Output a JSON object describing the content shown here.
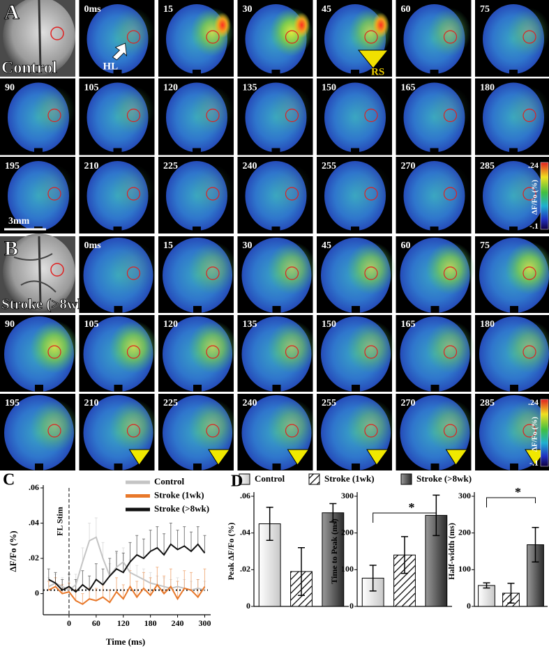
{
  "times": [
    "0ms",
    "15",
    "30",
    "45",
    "60",
    "75",
    "90",
    "105",
    "120",
    "135",
    "150",
    "165",
    "180",
    "195",
    "210",
    "225",
    "240",
    "255",
    "270",
    "285"
  ],
  "colorbar": {
    "title": "ΔF/Fo (%)",
    "ticks": [
      {
        "value": 0.24,
        "label": ".24"
      },
      {
        "value": -0.1,
        "label": "-.1"
      }
    ]
  },
  "panel_a": {
    "letter": "A",
    "label": "Control",
    "annotations": {
      "hl": "HL",
      "rs": "RS",
      "scale": "3mm"
    }
  },
  "panel_b": {
    "letter": "B",
    "label": "Stroke (>8wk)"
  },
  "chart_data": [
    {
      "type": "line",
      "panel": "C",
      "x_label": "Time (ms)",
      "y_label": "ΔF/Fo (%)",
      "stim": {
        "label": "FL Stim",
        "x": 0
      },
      "baseline": 0.002,
      "x": [
        -45,
        -30,
        -15,
        0,
        15,
        30,
        45,
        60,
        75,
        90,
        105,
        120,
        135,
        150,
        165,
        180,
        195,
        210,
        225,
        240,
        255,
        270,
        285,
        300
      ],
      "xlim": [
        -57,
        307
      ],
      "xticks": [
        0,
        60,
        120,
        180,
        240,
        300
      ],
      "ylim": [
        -0.012,
        0.06
      ],
      "yticks": [
        {
          "value": 0,
          "label": "0"
        },
        {
          "value": 0.02,
          "label": ".02"
        },
        {
          "value": 0.04,
          "label": ".04"
        },
        {
          "value": 0.06,
          "label": ".06"
        }
      ],
      "series": [
        {
          "name": "Control",
          "color": "#c4c4c4",
          "values": [
            0.004,
            0.006,
            0.004,
            0.002,
            0.005,
            0.018,
            0.03,
            0.032,
            0.02,
            0.01,
            0.015,
            0.018,
            0.012,
            0.01,
            0.008,
            0.006,
            0.005,
            0.004,
            0.003,
            0.004,
            0.003,
            0.002,
            0.003,
            0.002
          ],
          "errors": [
            0.005,
            0.005,
            0.005,
            0.005,
            0.006,
            0.008,
            0.01,
            0.011,
            0.009,
            0.007,
            0.008,
            0.008,
            0.007,
            0.006,
            0.006,
            0.006,
            0.005,
            0.005,
            0.005,
            0.005,
            0.005,
            0.005,
            0.005,
            0.005
          ]
        },
        {
          "name": "Stroke (1wk)",
          "color": "#e8782a",
          "values": [
            0.002,
            0.004,
            0,
            0.001,
            -0.004,
            -0.006,
            -0.003,
            -0.004,
            -0.002,
            -0.005,
            0.001,
            -0.003,
            0.004,
            -0.002,
            0.003,
            -0.001,
            0.005,
            0,
            0.004,
            -0.003,
            0.003,
            0.002,
            -0.002,
            0.004
          ],
          "errors": [
            0.005,
            0.005,
            0.005,
            0.005,
            0.006,
            0.006,
            0.006,
            0.007,
            0.007,
            0.007,
            0.008,
            0.008,
            0.009,
            0.009,
            0.009,
            0.01,
            0.01,
            0.01,
            0.01,
            0.01,
            0.01,
            0.01,
            0.01,
            0.01
          ]
        },
        {
          "name": "Stroke (>8wk)",
          "color": "#111111",
          "values": [
            0.008,
            0.006,
            0.002,
            0.004,
            0.001,
            0.005,
            0.002,
            0.008,
            0.005,
            0.01,
            0.014,
            0.012,
            0.018,
            0.022,
            0.02,
            0.024,
            0.026,
            0.022,
            0.028,
            0.025,
            0.027,
            0.024,
            0.028,
            0.023
          ],
          "errors": [
            0.006,
            0.006,
            0.006,
            0.007,
            0.007,
            0.008,
            0.008,
            0.009,
            0.009,
            0.01,
            0.01,
            0.011,
            0.011,
            0.011,
            0.011,
            0.012,
            0.012,
            0.012,
            0.012,
            0.011,
            0.011,
            0.011,
            0.01,
            0.01
          ]
        }
      ]
    },
    {
      "type": "bar",
      "panel": "D",
      "y_label": "Peak ΔF/Fo (%)",
      "categories": [
        "Control",
        "Stroke (1wk)",
        "Stroke (>8wk)"
      ],
      "values": [
        0.045,
        0.019,
        0.051
      ],
      "errors": [
        0.009,
        0.013,
        0.005
      ],
      "ylim": [
        0,
        0.06
      ],
      "yticks": [
        {
          "value": 0,
          "label": "0"
        },
        {
          "value": 0.02,
          "label": ".02"
        },
        {
          "value": 0.04,
          "label": ".04"
        },
        {
          "value": 0.06,
          "label": ".06"
        }
      ]
    },
    {
      "type": "bar",
      "y_label": "Time to Peak (ms)",
      "values": [
        77,
        140,
        248
      ],
      "errors": [
        35,
        50,
        55
      ],
      "ylim": [
        0,
        300
      ],
      "yticks": [
        0,
        100,
        200,
        300
      ],
      "significance": "*"
    },
    {
      "type": "bar",
      "y_label": "Half-width (ms)",
      "values": [
        57,
        36,
        168
      ],
      "errors": [
        7,
        27,
        47
      ],
      "ylim": [
        0,
        300
      ],
      "yticks": [
        0,
        100,
        200,
        300
      ],
      "significance": "*"
    }
  ]
}
